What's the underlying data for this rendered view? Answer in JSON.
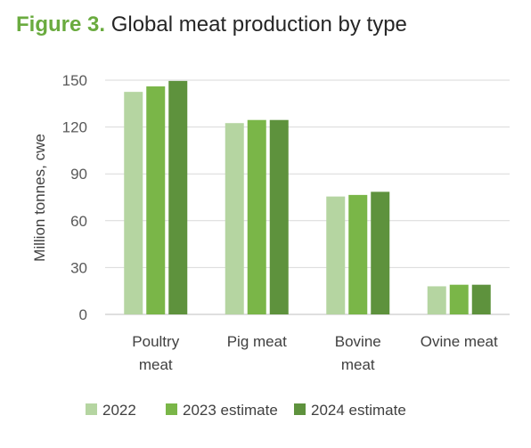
{
  "figure": {
    "label": "Figure 3.",
    "title": "Global meat production by type"
  },
  "chart_data": {
    "type": "bar",
    "title": "Global meat production by type",
    "ylabel": "Million tonnes, cwe",
    "xlabel": "",
    "ylim": [
      0,
      150
    ],
    "yticks": [
      0,
      30,
      60,
      90,
      120,
      150
    ],
    "grid": true,
    "legend_position": "bottom",
    "categories": [
      [
        "Poultry",
        "meat"
      ],
      [
        "Pig meat"
      ],
      [
        "Bovine",
        "meat"
      ],
      [
        "Ovine meat"
      ]
    ],
    "series": [
      {
        "name": "2022",
        "color": "#b5d5a1",
        "values": [
          142.5,
          122.5,
          75.5,
          18
        ]
      },
      {
        "name": "2023 estimate",
        "color": "#7ab648",
        "values": [
          146,
          124.5,
          76.5,
          19
        ]
      },
      {
        "name": "2024 estimate",
        "color": "#5e923d",
        "values": [
          149.5,
          124.5,
          78.5,
          19
        ]
      }
    ]
  }
}
